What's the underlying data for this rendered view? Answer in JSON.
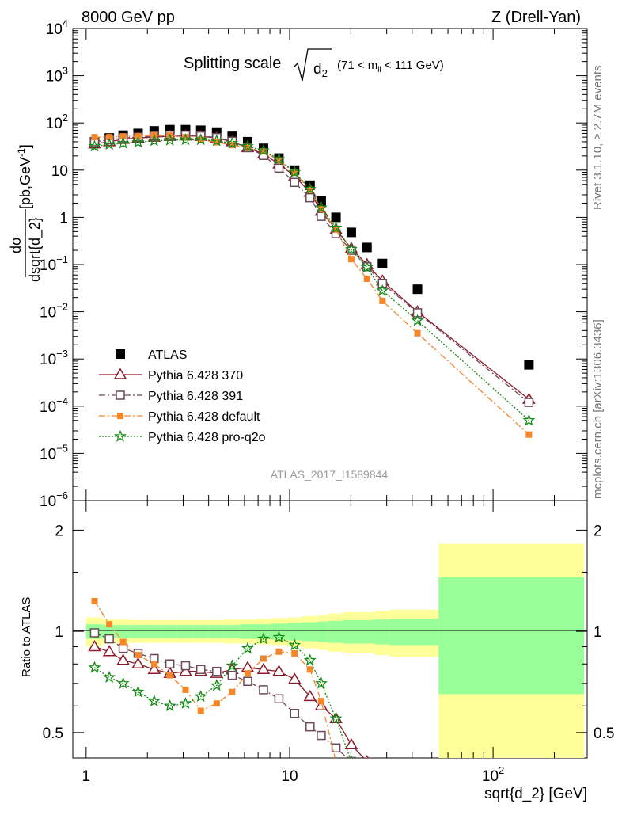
{
  "header": {
    "left": "8000 GeV pp",
    "right": "Z (Drell-Yan)"
  },
  "side_labels": {
    "rivet": "Rivet 3.1.10, ≥ 2.7M events",
    "mcplots": "mcplots.cern.ch [arXiv:1306.3436]"
  },
  "analysis_id": "ATLAS_2017_I1589844",
  "colors": {
    "atlas": "#000000",
    "p370": "#8b1a2b",
    "p391": "#6b4a5a",
    "default": "#f5862a",
    "proq2o": "#138a13",
    "band_inner": "#99ff99",
    "band_outer": "#ffff99"
  },
  "chart_data": [
    {
      "type": "scatter",
      "title": {
        "prefix": "Splitting scale",
        "radicand": "d",
        "sub": "2",
        "range_text": "(71 < m",
        "range_sub": "ll",
        "range_end": " < 111 GeV)"
      },
      "ylabel": {
        "num": "dσ",
        "den": "dsqrt{d_2}",
        "unit": "[pb,GeV",
        "unit_sup": "-1",
        "unit_end": "]"
      },
      "xlabel": "",
      "x_scale": "log",
      "y_scale": "log",
      "xlim": [
        0.86,
        290
      ],
      "ylim": [
        1e-06,
        10000
      ],
      "y_ticks": [
        {
          "value": 10000,
          "base": "10",
          "exp": "4"
        },
        {
          "value": 1000,
          "base": "10",
          "exp": "3"
        },
        {
          "value": 100,
          "base": "10",
          "exp": "2"
        },
        {
          "value": 10,
          "base": "10",
          "exp": ""
        },
        {
          "value": 1,
          "base": "1",
          "exp": ""
        },
        {
          "value": 0.1,
          "base": "10",
          "exp": "−1"
        },
        {
          "value": 0.01,
          "base": "10",
          "exp": "−2"
        },
        {
          "value": 0.001,
          "base": "10",
          "exp": "−3"
        },
        {
          "value": 0.0001,
          "base": "10",
          "exp": "−4"
        },
        {
          "value": 1e-05,
          "base": "10",
          "exp": "−5"
        },
        {
          "value": 1e-06,
          "base": "10",
          "exp": "−6"
        }
      ],
      "legend_position": "lower-left",
      "series": [
        {
          "name": "ATLAS",
          "marker": "square",
          "x": [
            1.1,
            1.3,
            1.52,
            1.8,
            2.16,
            2.58,
            3.08,
            3.66,
            4.38,
            5.22,
            6.22,
            7.44,
            8.86,
            10.58,
            12.6,
            14.3,
            16.9,
            20.1,
            24.0,
            28.6,
            42.5,
            150
          ],
          "y": [
            40,
            48,
            55,
            60,
            68,
            72,
            72,
            70,
            64,
            52,
            40,
            29,
            18,
            10,
            4.8,
            2.2,
            1.0,
            0.48,
            0.23,
            0.105,
            0.03,
            0.00075
          ]
        },
        {
          "name": "Pythia 6.428 370",
          "marker": "triangle",
          "line": "solid",
          "x": [
            1.1,
            1.3,
            1.52,
            1.8,
            2.16,
            2.58,
            3.08,
            3.66,
            4.38,
            5.22,
            6.22,
            7.44,
            8.86,
            10.58,
            12.6,
            14.3,
            16.9,
            20.1,
            24.0,
            28.6,
            42.5,
            150
          ],
          "y": [
            36,
            40,
            45,
            48,
            50,
            52,
            53,
            52,
            48,
            40,
            30,
            22,
            13.5,
            7.4,
            3.4,
            1.35,
            0.55,
            0.22,
            0.1,
            0.045,
            0.01,
            0.00014
          ]
        },
        {
          "name": "Pythia 6.428 391",
          "marker": "open-square",
          "line": "dashdot",
          "x": [
            1.1,
            1.3,
            1.52,
            1.8,
            2.16,
            2.58,
            3.08,
            3.66,
            4.38,
            5.22,
            6.22,
            7.44,
            8.86,
            10.58,
            12.6,
            14.3,
            16.9,
            20.1,
            24.0,
            28.6,
            42.5,
            150
          ],
          "y": [
            40,
            44,
            48,
            50,
            53,
            55,
            55,
            53,
            49,
            41,
            30,
            20.5,
            11,
            5.5,
            2.6,
            1.05,
            0.45,
            0.2,
            0.09,
            0.04,
            0.0095,
            0.00012
          ]
        },
        {
          "name": "Pythia 6.428 default",
          "marker": "small-square",
          "line": "dashdot",
          "x": [
            1.1,
            1.3,
            1.52,
            1.8,
            2.16,
            2.58,
            3.08,
            3.66,
            4.38,
            5.22,
            6.22,
            7.44,
            8.86,
            10.58,
            12.6,
            14.3,
            16.9,
            20.1,
            24.0,
            28.6,
            42.5,
            150
          ],
          "y": [
            50,
            50,
            52,
            52,
            55,
            54,
            50,
            44,
            39,
            34,
            30,
            25,
            16,
            8.8,
            3.8,
            1.5,
            0.55,
            0.13,
            0.05,
            0.017,
            0.0035,
            2.5e-05
          ]
        },
        {
          "name": "Pythia 6.428 pro-q2o",
          "marker": "star",
          "line": "dotted",
          "x": [
            1.1,
            1.3,
            1.52,
            1.8,
            2.16,
            2.58,
            3.08,
            3.66,
            4.38,
            5.22,
            6.22,
            7.44,
            8.86,
            10.58,
            12.6,
            14.3,
            16.9,
            20.1,
            24.0,
            28.6,
            42.5,
            150
          ],
          "y": [
            32,
            35,
            37,
            39,
            42,
            43,
            44,
            44,
            42,
            37,
            32,
            26,
            17,
            9,
            4,
            1.6,
            0.6,
            0.21,
            0.087,
            0.028,
            0.0065,
            5e-05
          ]
        }
      ]
    },
    {
      "type": "line",
      "ylabel": "Ratio to ATLAS",
      "xlabel": "sqrt{d_2} [GeV]",
      "x_scale": "log",
      "y_scale": "log",
      "xlim": [
        0.86,
        290
      ],
      "ylim": [
        0.42,
        2.45
      ],
      "x_ticks": [
        {
          "value": 1,
          "base": "1",
          "exp": ""
        },
        {
          "value": 10,
          "base": "10",
          "exp": ""
        },
        {
          "value": 100,
          "base": "10",
          "exp": "2"
        }
      ],
      "y_ticks": [
        {
          "value": 0.5,
          "label": "0.5"
        },
        {
          "value": 1,
          "label": "1"
        },
        {
          "value": 2,
          "label": "2"
        }
      ],
      "bands": {
        "edges": [
          1.0,
          1.2,
          1.4,
          1.65,
          1.97,
          2.36,
          2.8,
          3.35,
          4.0,
          4.75,
          5.7,
          6.8,
          8.1,
          9.7,
          11.5,
          13.7,
          15.5,
          18.3,
          21.9,
          26.1,
          31.1,
          54.0,
          280
        ],
        "inner_lo": [
          0.95,
          0.955,
          0.955,
          0.955,
          0.955,
          0.955,
          0.955,
          0.955,
          0.955,
          0.955,
          0.95,
          0.95,
          0.945,
          0.94,
          0.935,
          0.93,
          0.925,
          0.92,
          0.92,
          0.915,
          0.91,
          0.65
        ],
        "inner_hi": [
          1.05,
          1.045,
          1.045,
          1.045,
          1.045,
          1.045,
          1.045,
          1.045,
          1.045,
          1.045,
          1.05,
          1.05,
          1.055,
          1.06,
          1.065,
          1.07,
          1.075,
          1.08,
          1.08,
          1.085,
          1.09,
          1.45
        ],
        "outer_lo": [
          0.9,
          0.92,
          0.92,
          0.925,
          0.925,
          0.925,
          0.925,
          0.925,
          0.925,
          0.92,
          0.92,
          0.915,
          0.91,
          0.9,
          0.89,
          0.88,
          0.87,
          0.86,
          0.86,
          0.85,
          0.84,
          0.34
        ],
        "outer_hi": [
          1.1,
          1.085,
          1.085,
          1.08,
          1.08,
          1.08,
          1.08,
          1.08,
          1.08,
          1.085,
          1.085,
          1.09,
          1.095,
          1.1,
          1.11,
          1.12,
          1.13,
          1.14,
          1.14,
          1.15,
          1.16,
          1.82
        ]
      },
      "series": [
        {
          "name": "Pythia 6.428 370",
          "x": [
            1.1,
            1.3,
            1.52,
            1.8,
            2.16,
            2.58,
            3.08,
            3.66,
            4.38,
            5.22,
            6.22,
            7.44,
            8.86,
            10.58,
            12.6,
            14.3,
            16.9,
            20.1,
            24.0,
            28.6
          ],
          "y": [
            0.9,
            0.87,
            0.82,
            0.8,
            0.77,
            0.75,
            0.76,
            0.76,
            0.75,
            0.77,
            0.78,
            0.77,
            0.76,
            0.72,
            0.64,
            0.6,
            0.55,
            0.46,
            0.41,
            0.375
          ]
        },
        {
          "name": "Pythia 6.428 391",
          "x": [
            1.1,
            1.3,
            1.52,
            1.8,
            2.16,
            2.58,
            3.08,
            3.66,
            4.38,
            5.22,
            6.22,
            7.44,
            8.86,
            10.58,
            12.6,
            14.3,
            16.9,
            20.1,
            24.0
          ],
          "y": [
            0.99,
            0.95,
            0.89,
            0.86,
            0.83,
            0.8,
            0.79,
            0.77,
            0.76,
            0.74,
            0.71,
            0.67,
            0.63,
            0.57,
            0.52,
            0.49,
            0.45,
            0.41,
            0.375
          ]
        },
        {
          "name": "Pythia 6.428 default",
          "x": [
            1.1,
            1.3,
            1.52,
            1.8,
            2.16,
            2.58,
            3.08,
            3.66,
            4.38,
            5.22,
            6.22,
            7.44,
            8.86,
            10.58,
            12.6,
            14.3,
            16.9,
            20.1
          ],
          "y": [
            1.23,
            1.05,
            0.93,
            0.85,
            0.8,
            0.74,
            0.67,
            0.58,
            0.61,
            0.66,
            0.75,
            0.83,
            0.87,
            0.86,
            0.77,
            0.62,
            0.41,
            0.375
          ]
        },
        {
          "name": "Pythia 6.428 pro-q2o",
          "x": [
            1.1,
            1.3,
            1.52,
            1.8,
            2.16,
            2.58,
            3.08,
            3.66,
            4.38,
            5.22,
            6.22,
            7.44,
            8.86,
            10.58,
            12.6,
            14.3,
            16.9,
            20.1
          ],
          "y": [
            0.78,
            0.73,
            0.7,
            0.66,
            0.62,
            0.6,
            0.61,
            0.64,
            0.69,
            0.79,
            0.89,
            0.95,
            0.96,
            0.91,
            0.82,
            0.7,
            0.55,
            0.41
          ]
        }
      ]
    }
  ]
}
